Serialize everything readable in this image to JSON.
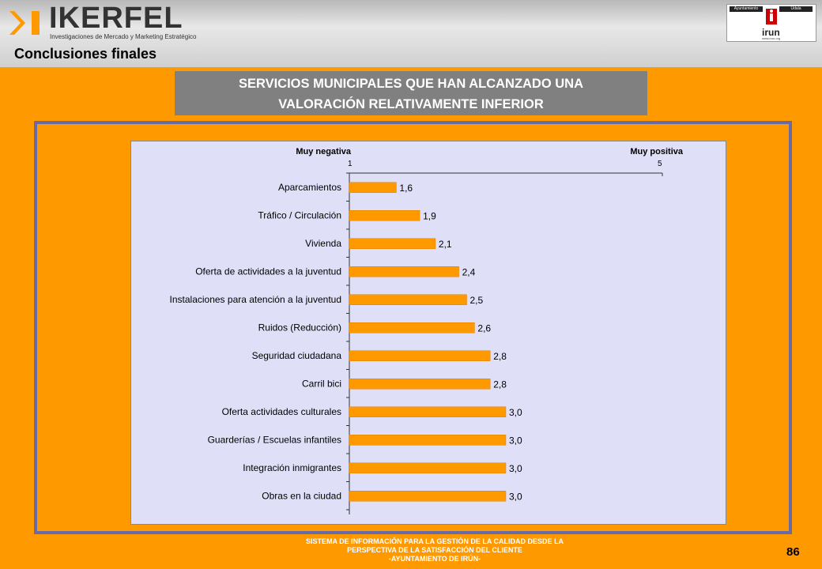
{
  "header": {
    "logo_text": "IKERFEL",
    "logo_subtitle": "Investigaciones de Mercado y Marketing Estratégico",
    "page_title": "Conclusiones finales",
    "irun_left": "Ayuntamiento",
    "irun_right": "Udala",
    "irun_name": "irun",
    "irun_url": "www.irun.org"
  },
  "banner": {
    "line1": "SERVICIOS MUNICIPALES QUE HAN ALCANZADO UNA",
    "line2": "VALORACIÓN RELATIVAMENTE INFERIOR"
  },
  "chart_data": {
    "type": "bar",
    "orientation": "horizontal",
    "label_left": "Muy negativa",
    "label_right": "Muy positiva",
    "xlim": [
      1,
      5
    ],
    "tick_labels": [
      "1",
      "5"
    ],
    "categories": [
      "Aparcamientos",
      "Tráfico / Circulación",
      "Vivienda",
      "Oferta de actividades a la juventud",
      "Instalaciones para atención a la juventud",
      "Ruidos (Reducción)",
      "Seguridad ciudadana",
      "Carril bici",
      "Oferta actividades culturales",
      "Guarderías / Escuelas infantiles",
      "Integración inmigrantes",
      "Obras en la ciudad"
    ],
    "values": [
      1.6,
      1.9,
      2.1,
      2.4,
      2.5,
      2.6,
      2.8,
      2.8,
      3.0,
      3.0,
      3.0,
      3.0
    ],
    "value_labels": [
      "1,6",
      "1,9",
      "2,1",
      "2,4",
      "2,5",
      "2,6",
      "2,8",
      "2,8",
      "3,0",
      "3,0",
      "3,0",
      "3,0"
    ],
    "bar_color": "#ff9900"
  },
  "footer": {
    "line1": "SISTEMA DE INFORMACIÓN PARA LA GESTIÓN DE LA CALIDAD DESDE LA",
    "line2": "PERSPECTIVA DE LA SATISFACCIÓN DEL CLIENTE",
    "line3": "-AYUNTAMIENTO DE IRÚN-",
    "page_number": "86"
  }
}
